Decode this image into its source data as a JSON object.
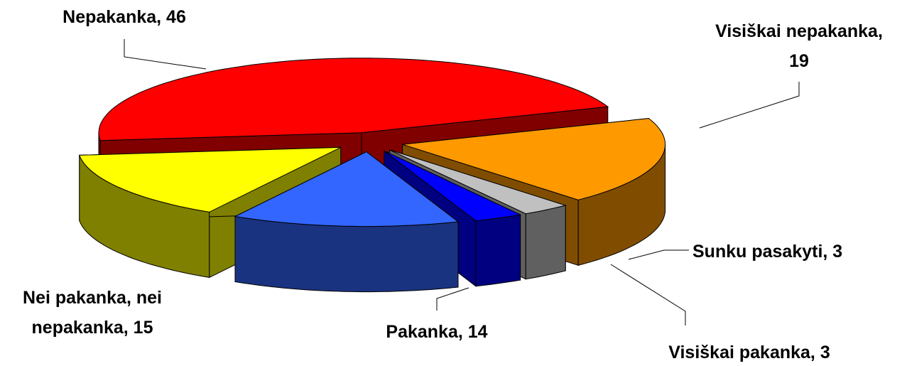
{
  "chart_data": {
    "type": "pie",
    "values": [
      46,
      19,
      3,
      3,
      14,
      15
    ],
    "value_labels": [
      "Nepakanka, 46",
      "Visiškai nepakanka,\n19",
      "Sunku pasakyti, 3",
      "Visiškai pakanka, 3",
      "Pakanka, 14",
      "Nei pakanka, nei\nnepakanka, 15"
    ],
    "colors": [
      "#ff0000",
      "#ff9900",
      "#c0c0c0",
      "#0000ff",
      "#3366ff",
      "#ffff00"
    ]
  }
}
